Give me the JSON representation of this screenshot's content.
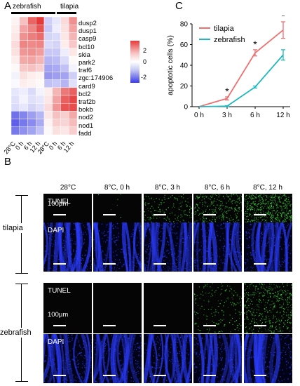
{
  "panels": {
    "a": "A",
    "b": "B",
    "c": "C"
  },
  "heatmap": {
    "group_labels": [
      "zebrafish",
      "tilapia"
    ],
    "conditions": [
      "28°C",
      "0 h",
      "6 h",
      "12 h",
      "28°C",
      "0 h",
      "6 h",
      "12 h"
    ],
    "genes": [
      "dusp2",
      "dusp1",
      "casp9",
      "bcl10",
      "skia",
      "park2",
      "traf6",
      "zgc:174906",
      "card9",
      "bcl2",
      "traf2b",
      "bokb",
      "nod2",
      "nod1",
      "fadd"
    ],
    "values": [
      [
        0.2,
        1.0,
        2.5,
        3.2,
        -0.8,
        -0.4,
        0.6,
        1.8
      ],
      [
        0.3,
        1.5,
        2.0,
        2.8,
        -0.9,
        -0.3,
        0.5,
        1.5
      ],
      [
        0.4,
        1.8,
        2.1,
        2.4,
        -0.7,
        -0.6,
        0.4,
        1.2
      ],
      [
        0.6,
        2.0,
        1.9,
        2.0,
        -0.6,
        -0.7,
        0.3,
        0.9
      ],
      [
        0.5,
        1.7,
        1.8,
        1.6,
        -0.9,
        -0.9,
        -0.3,
        0.4
      ],
      [
        0.3,
        1.4,
        1.5,
        1.2,
        -1.2,
        -1.1,
        -0.6,
        0.1
      ],
      [
        0.1,
        0.9,
        1.0,
        0.8,
        -1.5,
        -1.4,
        -1.0,
        -0.2
      ],
      [
        -0.2,
        0.5,
        0.3,
        0.2,
        -1.7,
        -1.6,
        -1.5,
        -0.8
      ],
      [
        -0.1,
        0.3,
        0.2,
        0.1,
        -1.0,
        -0.9,
        -1.2,
        -0.5
      ],
      [
        -0.4,
        -0.3,
        -0.6,
        -0.2,
        0.3,
        1.2,
        2.2,
        2.6
      ],
      [
        -0.5,
        -0.2,
        -0.5,
        -0.4,
        0.4,
        1.5,
        2.6,
        3.0
      ],
      [
        -0.6,
        -0.4,
        -0.7,
        -0.5,
        0.6,
        1.7,
        2.8,
        2.9
      ],
      [
        -2.3,
        -2.0,
        -1.6,
        -1.2,
        0.4,
        1.0,
        0.8,
        1.4
      ],
      [
        -2.6,
        -2.2,
        -1.9,
        -1.4,
        0.2,
        0.8,
        0.7,
        1.1
      ],
      [
        -2.2,
        -1.8,
        -1.5,
        -1.0,
        0.1,
        0.5,
        0.4,
        0.8
      ]
    ],
    "legend_ticks": [
      "2",
      "0",
      "-2"
    ],
    "colors": {
      "high": "#e53a3a",
      "mid": "#ffffff",
      "low": "#3a3ae5",
      "zebrafish_bar": "#000000",
      "tilapia_bar": "#000000"
    }
  },
  "chart_data": {
    "type": "line",
    "title": "",
    "xlabel": "",
    "ylabel": "apoptotic cells (%)",
    "categories": [
      "0 h",
      "3 h",
      "6 h",
      "12 h"
    ],
    "ylim": [
      0,
      80
    ],
    "yticks": [
      "0",
      "20",
      "40",
      "60",
      "80"
    ],
    "legend_placement": "top-left",
    "series": [
      {
        "name": "tilapia",
        "color": "#f07070",
        "values": [
          0,
          8,
          52,
          74
        ],
        "errors": [
          0,
          1.5,
          3,
          8
        ]
      },
      {
        "name": "zebrafish",
        "color": "#20b8c0",
        "values": [
          0,
          0.5,
          19,
          50
        ],
        "errors": [
          0,
          0.5,
          1,
          5
        ]
      }
    ],
    "significance": [
      {
        "category": "3 h",
        "label": "*"
      },
      {
        "category": "6 h",
        "label": "*"
      },
      {
        "category": "12 h",
        "label": "*"
      }
    ]
  },
  "panel_b": {
    "column_headers": [
      "28°C",
      "8°C, 0 h",
      "8°C, 3 h",
      "8°C, 6 h",
      "8°C, 12 h"
    ],
    "species": [
      {
        "name": "tilapia",
        "tunel_label": "TUNEL",
        "dapi_label": "DAPI",
        "scale_label": "100µm",
        "tunel_density": [
          0,
          0.01,
          0.25,
          0.45,
          0.9
        ]
      },
      {
        "name": "zebrafish",
        "tunel_label": "TUNEL",
        "dapi_label": "DAPI",
        "scale_label": "100µm",
        "tunel_density": [
          0,
          0,
          0,
          0.3,
          0.75
        ]
      }
    ],
    "colors": {
      "tunel": "#3fd13f",
      "dapi": "#2a3cff"
    }
  }
}
